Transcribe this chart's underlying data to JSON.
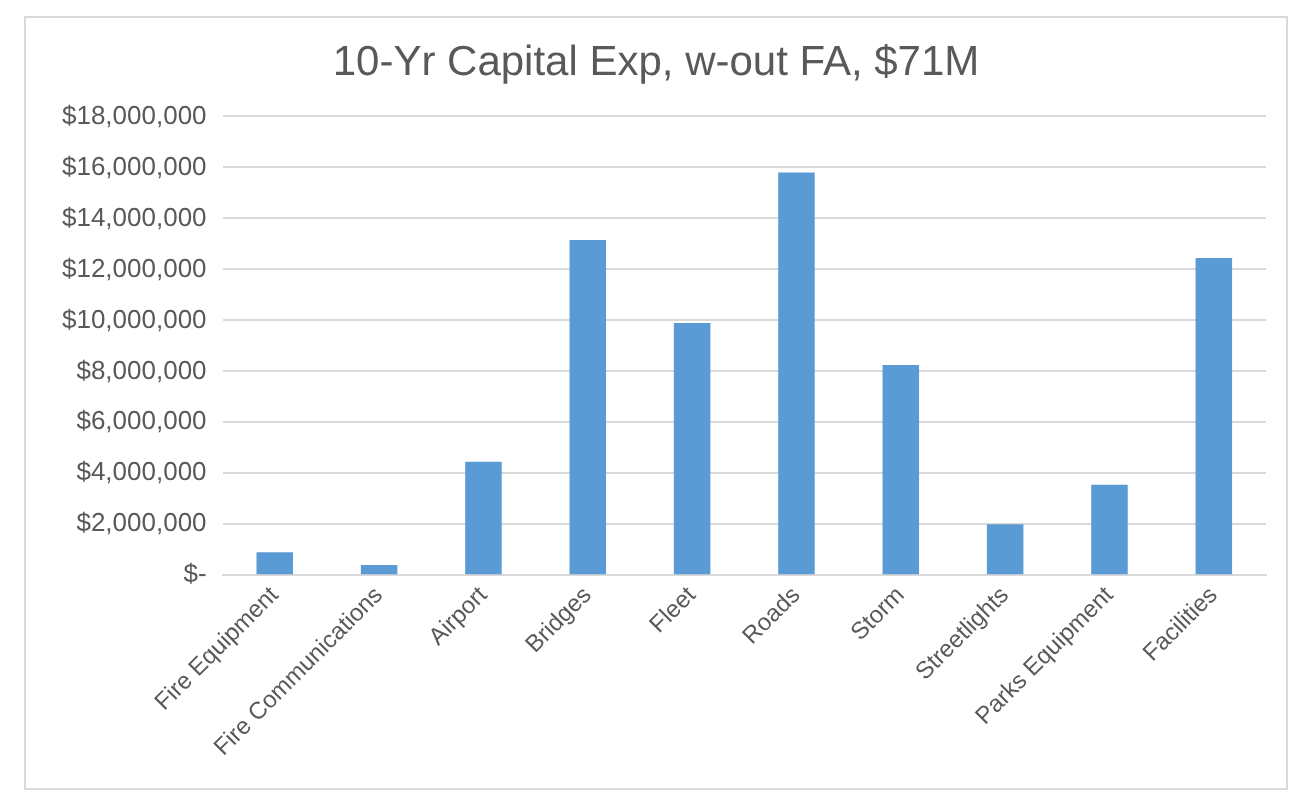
{
  "chart_data": {
    "type": "bar",
    "title": "10-Yr Capital Exp, w-out FA, $71M",
    "categories": [
      "Fire Equipment",
      "Fire Communications",
      "Airport",
      "Bridges",
      "Fleet",
      "Roads",
      "Storm",
      "Streetlights",
      "Parks Equipment",
      "Facilities"
    ],
    "values": [
      900000,
      400000,
      4450000,
      13150000,
      9900000,
      15800000,
      8250000,
      2000000,
      3550000,
      12450000
    ],
    "color": "#5b9bd5",
    "ylim": [
      0,
      18000000
    ],
    "yticks": [
      {
        "value": 0,
        "label": "$-"
      },
      {
        "value": 2000000,
        "label": "$2,000,000"
      },
      {
        "value": 4000000,
        "label": "$4,000,000"
      },
      {
        "value": 6000000,
        "label": "$6,000,000"
      },
      {
        "value": 8000000,
        "label": "$8,000,000"
      },
      {
        "value": 10000000,
        "label": "$10,000,000"
      },
      {
        "value": 12000000,
        "label": "$12,000,000"
      },
      {
        "value": 14000000,
        "label": "$14,000,000"
      },
      {
        "value": 16000000,
        "label": "$16,000,000"
      },
      {
        "value": 18000000,
        "label": "$18,000,000"
      }
    ],
    "grid": "y",
    "legend": false
  }
}
